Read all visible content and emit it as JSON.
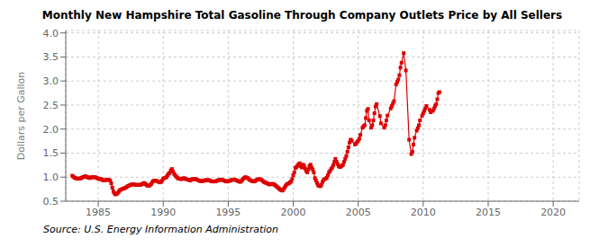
{
  "chart_data": {
    "type": "line",
    "title": "Monthly New Hampshire Total Gasoline Through Company Outlets Price by All Sellers",
    "y_label": "Dollars per Gallon",
    "annotations": [
      "Source: U.S. Energy Information Administration"
    ],
    "color": "#dd0000",
    "marker": "square",
    "line_style": "solid",
    "grid": true,
    "xlim": [
      1982.5,
      2022.0
    ],
    "ylim": [
      0.5,
      4.05
    ],
    "xticks": [
      1985,
      1990,
      1995,
      2000,
      2005,
      2010,
      2015,
      2020
    ],
    "yticks": [
      0.5,
      {
        "value": 1.0,
        "label": "1.0"
      },
      1.5,
      {
        "value": 2.0,
        "label": "2.0"
      },
      2.5,
      {
        "value": 3.0,
        "label": "3.0"
      },
      3.5,
      {
        "value": 4.0,
        "label": "4.0"
      }
    ],
    "x": [
      1983.0,
      1983.083,
      1983.167,
      1983.25,
      1983.333,
      1983.417,
      1983.5,
      1983.583,
      1983.667,
      1983.75,
      1983.833,
      1983.917,
      1984.0,
      1984.083,
      1984.167,
      1984.25,
      1984.333,
      1984.417,
      1984.5,
      1984.583,
      1984.667,
      1984.75,
      1984.833,
      1984.917,
      1985.0,
      1985.083,
      1985.167,
      1985.25,
      1985.333,
      1985.417,
      1985.5,
      1985.583,
      1985.667,
      1985.75,
      1985.833,
      1985.917,
      1986.0,
      1986.083,
      1986.167,
      1986.25,
      1986.333,
      1986.417,
      1986.5,
      1986.583,
      1986.667,
      1986.75,
      1986.833,
      1986.917,
      1987.0,
      1987.083,
      1987.167,
      1987.25,
      1987.333,
      1987.417,
      1987.5,
      1987.583,
      1987.667,
      1987.75,
      1987.833,
      1987.917,
      1988.0,
      1988.083,
      1988.167,
      1988.25,
      1988.333,
      1988.417,
      1988.5,
      1988.583,
      1988.667,
      1988.75,
      1988.833,
      1988.917,
      1989.0,
      1989.083,
      1989.167,
      1989.25,
      1989.333,
      1989.417,
      1989.5,
      1989.583,
      1989.667,
      1989.75,
      1989.833,
      1989.917,
      1990.0,
      1990.083,
      1990.167,
      1990.25,
      1990.333,
      1990.417,
      1990.5,
      1990.583,
      1990.667,
      1990.75,
      1990.833,
      1990.917,
      1991.0,
      1991.083,
      1991.167,
      1991.25,
      1991.333,
      1991.417,
      1991.5,
      1991.583,
      1991.667,
      1991.75,
      1991.833,
      1991.917,
      1992.0,
      1992.083,
      1992.167,
      1992.25,
      1992.333,
      1992.417,
      1992.5,
      1992.583,
      1992.667,
      1992.75,
      1992.833,
      1992.917,
      1993.0,
      1993.083,
      1993.167,
      1993.25,
      1993.333,
      1993.417,
      1993.5,
      1993.583,
      1993.667,
      1993.75,
      1993.833,
      1993.917,
      1994.0,
      1994.083,
      1994.167,
      1994.25,
      1994.333,
      1994.417,
      1994.5,
      1994.583,
      1994.667,
      1994.75,
      1994.833,
      1994.917,
      1995.0,
      1995.083,
      1995.167,
      1995.25,
      1995.333,
      1995.417,
      1995.5,
      1995.583,
      1995.667,
      1995.75,
      1995.833,
      1995.917,
      1996.0,
      1996.083,
      1996.167,
      1996.25,
      1996.333,
      1996.417,
      1996.5,
      1996.583,
      1996.667,
      1996.75,
      1996.833,
      1996.917,
      1997.0,
      1997.083,
      1997.167,
      1997.25,
      1997.333,
      1997.417,
      1997.5,
      1997.583,
      1997.667,
      1997.75,
      1997.833,
      1997.917,
      1998.0,
      1998.083,
      1998.167,
      1998.25,
      1998.333,
      1998.417,
      1998.5,
      1998.583,
      1998.667,
      1998.75,
      1998.833,
      1998.917,
      1999.0,
      1999.083,
      1999.167,
      1999.25,
      1999.333,
      1999.417,
      1999.5,
      1999.583,
      1999.667,
      1999.75,
      1999.833,
      1999.917,
      2000.0,
      2000.083,
      2000.167,
      2000.25,
      2000.333,
      2000.417,
      2000.5,
      2000.583,
      2000.667,
      2000.75,
      2000.833,
      2000.917,
      2001.0,
      2001.083,
      2001.167,
      2001.25,
      2001.333,
      2001.417,
      2001.5,
      2001.583,
      2001.667,
      2001.75,
      2001.833,
      2001.917,
      2002.0,
      2002.083,
      2002.167,
      2002.25,
      2002.333,
      2002.417,
      2002.5,
      2002.583,
      2002.667,
      2002.75,
      2002.833,
      2002.917,
      2003.0,
      2003.083,
      2003.167,
      2003.25,
      2003.333,
      2003.417,
      2003.5,
      2003.583,
      2003.667,
      2003.75,
      2003.833,
      2003.917,
      2004.0,
      2004.083,
      2004.167,
      2004.25,
      2004.333,
      2004.417,
      2004.5,
      2004.75,
      2004.833,
      2004.917,
      2005.0,
      2005.083,
      2005.167,
      2005.333,
      2005.417,
      2005.5,
      2005.583,
      2005.667,
      2005.75,
      2005.833,
      2006.0,
      2006.083,
      2006.167,
      2006.25,
      2006.333,
      2006.417,
      2006.667,
      2006.75,
      2007.0,
      2007.083,
      2007.167,
      2007.25,
      2007.5,
      2007.583,
      2007.667,
      2007.75,
      2007.917,
      2008.0,
      2008.083,
      2008.167,
      2008.25,
      2008.333,
      2008.5,
      2008.667,
      2008.917,
      2009.083,
      2009.167,
      2009.25,
      2009.333,
      2009.5,
      2009.583,
      2009.667,
      2009.75,
      2009.917,
      2010.0,
      2010.083,
      2010.167,
      2010.25,
      2010.5,
      2010.583,
      2010.75,
      2010.833,
      2010.917,
      2011.0,
      2011.083,
      2011.167,
      2011.25
    ],
    "values": [
      1.03,
      1.01,
      0.99,
      0.98,
      0.97,
      0.97,
      0.97,
      0.97,
      0.98,
      0.99,
      1.0,
      1.01,
      1.02,
      1.01,
      1.0,
      0.99,
      0.98,
      0.99,
      1.0,
      1.0,
      1.0,
      1.0,
      0.99,
      0.98,
      0.97,
      0.96,
      0.96,
      0.96,
      0.94,
      0.93,
      0.93,
      0.94,
      0.95,
      0.95,
      0.94,
      0.93,
      0.87,
      0.78,
      0.7,
      0.66,
      0.64,
      0.65,
      0.67,
      0.7,
      0.73,
      0.74,
      0.75,
      0.76,
      0.77,
      0.78,
      0.79,
      0.81,
      0.82,
      0.83,
      0.84,
      0.85,
      0.85,
      0.85,
      0.84,
      0.84,
      0.84,
      0.84,
      0.84,
      0.84,
      0.85,
      0.86,
      0.88,
      0.87,
      0.85,
      0.83,
      0.82,
      0.82,
      0.84,
      0.86,
      0.9,
      0.92,
      0.93,
      0.93,
      0.92,
      0.91,
      0.9,
      0.89,
      0.9,
      0.93,
      0.97,
      0.98,
      0.99,
      1.0,
      1.04,
      1.07,
      1.09,
      1.14,
      1.17,
      1.12,
      1.07,
      1.04,
      1.01,
      0.99,
      0.97,
      0.97,
      0.96,
      0.96,
      0.97,
      0.98,
      0.97,
      0.96,
      0.95,
      0.95,
      0.94,
      0.93,
      0.95,
      0.96,
      0.96,
      0.96,
      0.96,
      0.95,
      0.94,
      0.93,
      0.92,
      0.92,
      0.92,
      0.92,
      0.93,
      0.94,
      0.93,
      0.94,
      0.94,
      0.93,
      0.92,
      0.91,
      0.91,
      0.91,
      0.91,
      0.92,
      0.93,
      0.94,
      0.94,
      0.95,
      0.95,
      0.94,
      0.93,
      0.92,
      0.91,
      0.91,
      0.92,
      0.92,
      0.93,
      0.94,
      0.95,
      0.95,
      0.95,
      0.94,
      0.93,
      0.92,
      0.91,
      0.9,
      0.92,
      0.94,
      0.97,
      0.99,
      1.0,
      0.99,
      0.98,
      0.96,
      0.94,
      0.93,
      0.92,
      0.91,
      0.91,
      0.92,
      0.94,
      0.95,
      0.96,
      0.96,
      0.95,
      0.94,
      0.92,
      0.9,
      0.89,
      0.88,
      0.87,
      0.86,
      0.85,
      0.85,
      0.86,
      0.86,
      0.85,
      0.84,
      0.82,
      0.8,
      0.78,
      0.76,
      0.74,
      0.73,
      0.72,
      0.75,
      0.78,
      0.82,
      0.85,
      0.86,
      0.87,
      0.89,
      0.91,
      0.96,
      1.04,
      1.1,
      1.19,
      1.21,
      1.24,
      1.27,
      1.29,
      1.23,
      1.2,
      1.26,
      1.24,
      1.18,
      1.13,
      1.1,
      1.16,
      1.23,
      1.26,
      1.2,
      1.16,
      1.1,
      0.98,
      0.93,
      0.88,
      0.83,
      0.82,
      0.81,
      0.84,
      0.9,
      0.94,
      0.96,
      0.97,
      0.99,
      1.04,
      1.1,
      1.13,
      1.17,
      1.2,
      1.25,
      1.32,
      1.38,
      1.32,
      1.27,
      1.23,
      1.21,
      1.22,
      1.24,
      1.26,
      1.32,
      1.38,
      1.44,
      1.53,
      1.62,
      1.72,
      1.78,
      1.76,
      1.68,
      1.7,
      1.73,
      1.76,
      1.8,
      1.88,
      2.03,
      2.06,
      2.08,
      2.23,
      2.38,
      2.42,
      2.18,
      2.03,
      2.08,
      2.18,
      2.33,
      2.47,
      2.52,
      2.27,
      2.12,
      2.03,
      2.08,
      2.18,
      2.28,
      2.43,
      2.48,
      2.53,
      2.58,
      2.93,
      2.98,
      3.03,
      3.12,
      3.28,
      3.38,
      3.58,
      3.22,
      1.78,
      1.48,
      1.53,
      1.68,
      1.82,
      1.97,
      2.02,
      2.08,
      2.18,
      2.28,
      2.33,
      2.38,
      2.43,
      2.48,
      2.4,
      2.35,
      2.38,
      2.43,
      2.48,
      2.52,
      2.62,
      2.75,
      2.77
    ]
  }
}
